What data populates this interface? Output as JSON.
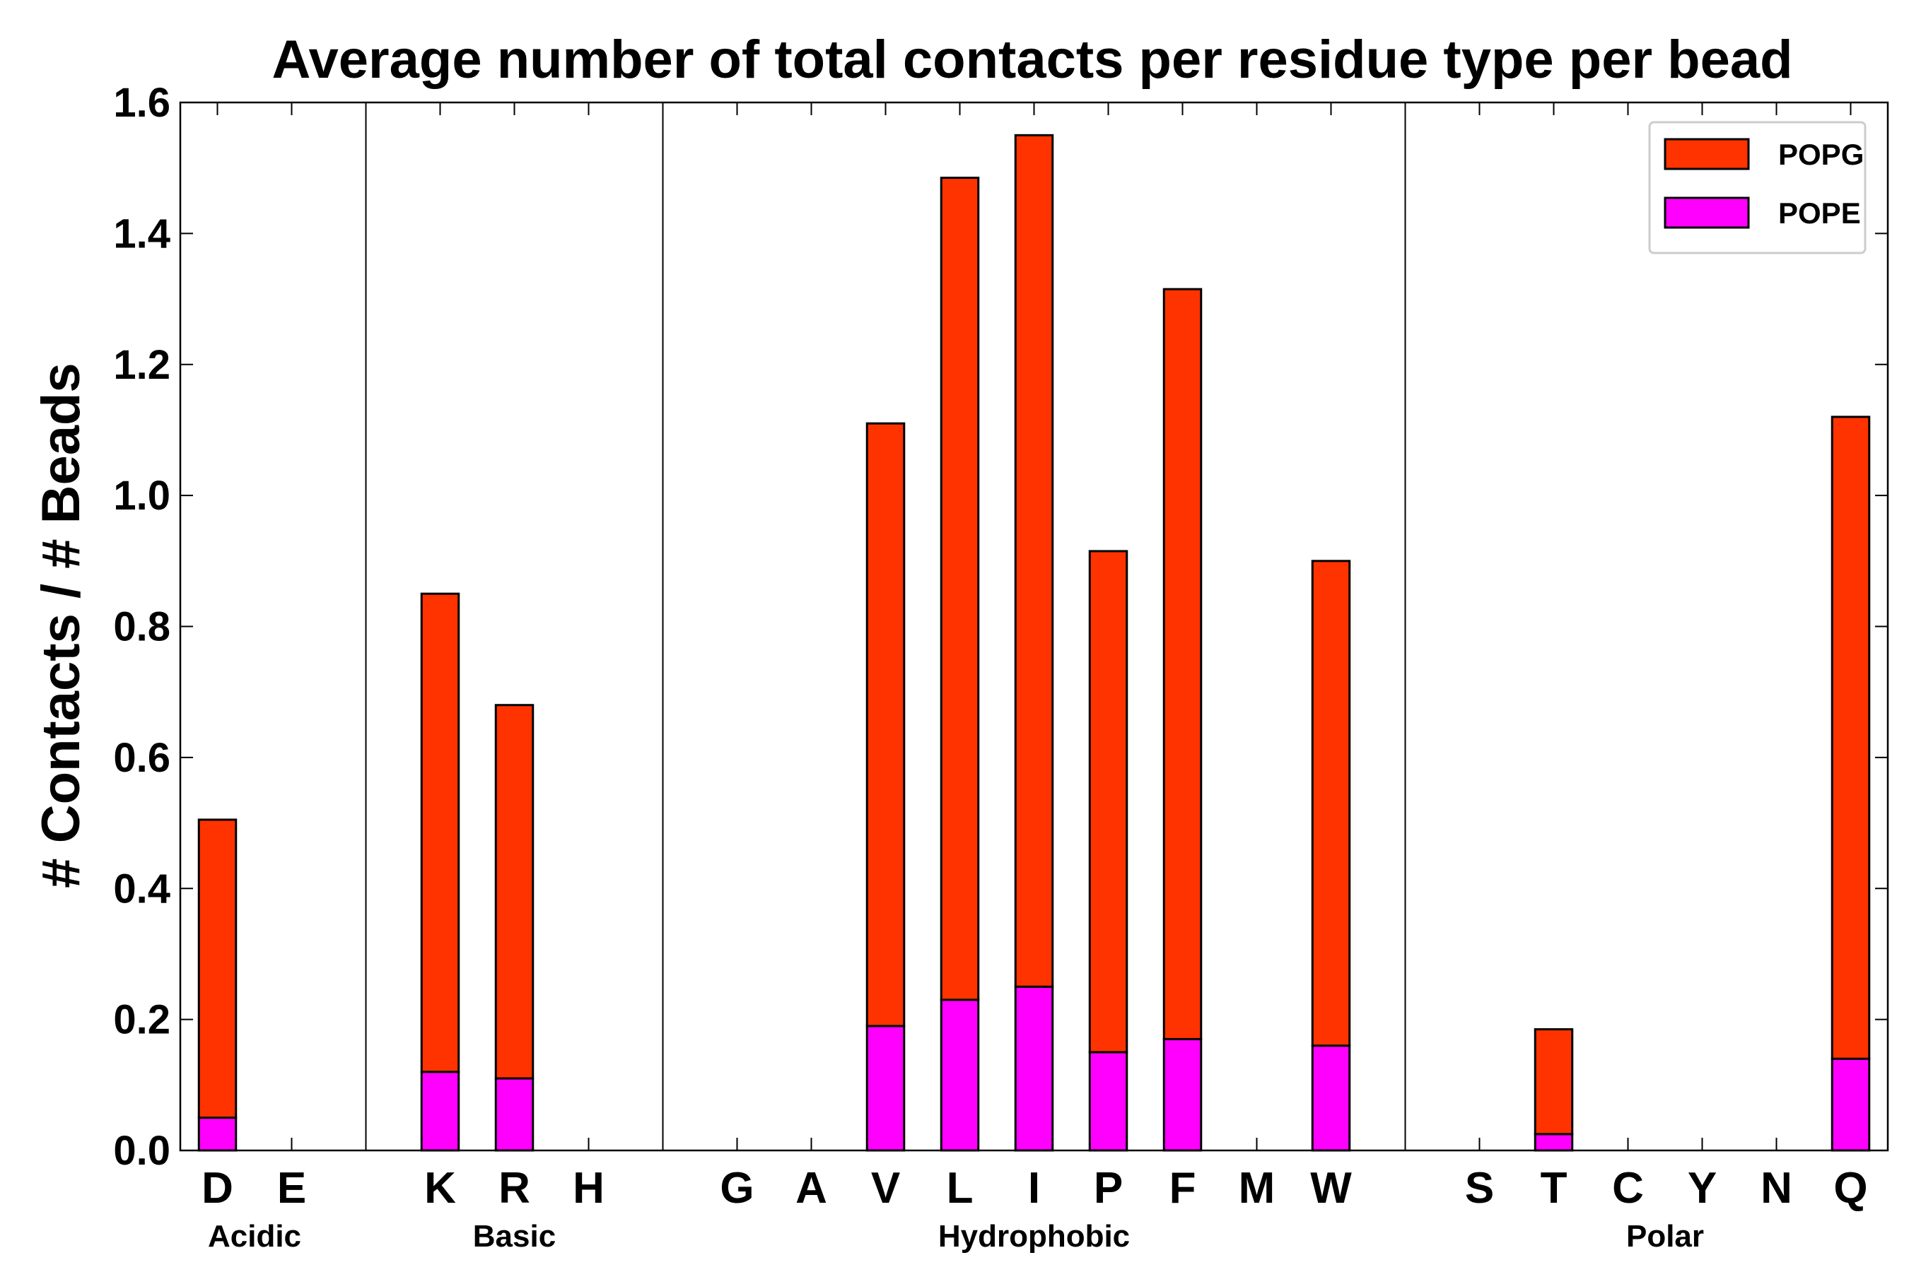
{
  "chart_data": {
    "type": "bar",
    "stacked": true,
    "title": "Average number of total contacts per residue type per bead",
    "xlabel": "",
    "ylabel": "# Contacts / # Beads",
    "ylim": [
      0.0,
      1.6
    ],
    "yticks": [
      "0.0",
      "0.2",
      "0.4",
      "0.6",
      "0.8",
      "1.0",
      "1.2",
      "1.4",
      "1.6"
    ],
    "grid": false,
    "legend_position": "top-right",
    "categories": [
      "D",
      "E",
      "",
      "K",
      "R",
      "H",
      "",
      "G",
      "A",
      "V",
      "L",
      "I",
      "P",
      "F",
      "M",
      "W",
      "",
      "S",
      "T",
      "C",
      "Y",
      "N",
      "Q"
    ],
    "groups": [
      {
        "label": "Acidic",
        "start": 0,
        "end": 1
      },
      {
        "label": "Basic",
        "start": 3,
        "end": 5
      },
      {
        "label": "Hydrophobic",
        "start": 7,
        "end": 15
      },
      {
        "label": "Polar",
        "start": 17,
        "end": 22
      }
    ],
    "separators_after": [
      2,
      6,
      16
    ],
    "series": [
      {
        "name": "POPE",
        "color": "#ff00ff",
        "values": [
          0.05,
          0,
          0,
          0.12,
          0.11,
          0,
          0,
          0,
          0,
          0.19,
          0.23,
          0.25,
          0.15,
          0.17,
          0,
          0.16,
          0,
          0,
          0.025,
          0,
          0,
          0,
          0.14
        ]
      },
      {
        "name": "POPG",
        "color": "#ff3300",
        "values": [
          0.455,
          0,
          0,
          0.73,
          0.57,
          0,
          0,
          0,
          0,
          0.92,
          1.255,
          1.3,
          0.765,
          1.145,
          0,
          0.74,
          0,
          0,
          0.16,
          0,
          0,
          0,
          0.98
        ]
      }
    ],
    "legend_order": [
      "POPG",
      "POPE"
    ]
  }
}
